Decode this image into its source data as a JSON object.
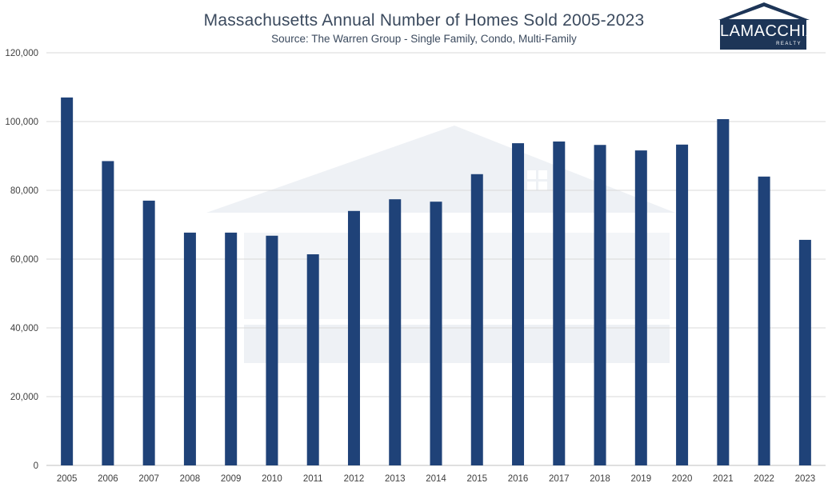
{
  "brand": {
    "logo_name": "LAMACCHIA",
    "logo_sub": "REALTY"
  },
  "colors": {
    "bar": "#1f4278",
    "grid": "#d9d9d9",
    "text": "#404040",
    "title": "#3b4a5e",
    "watermark": "#eef1f5"
  },
  "chart_data": {
    "type": "bar",
    "title": "Massachusetts Annual Number of Homes Sold 2005-2023",
    "subtitle": "Source: The Warren Group - Single Family, Condo, Multi-Family",
    "xlabel": "",
    "ylabel": "",
    "ylim": [
      0,
      120000
    ],
    "yticks": [
      0,
      20000,
      40000,
      60000,
      80000,
      100000,
      120000
    ],
    "ytick_labels": [
      "0",
      "20,000",
      "40,000",
      "60,000",
      "80,000",
      "100,000",
      "120,000"
    ],
    "grid": true,
    "legend": "none",
    "categories": [
      "2005",
      "2006",
      "2007",
      "2008",
      "2009",
      "2010",
      "2011",
      "2012",
      "2013",
      "2014",
      "2015",
      "2016",
      "2017",
      "2018",
      "2019",
      "2020",
      "2021",
      "2022",
      "2023"
    ],
    "values": [
      107000,
      88500,
      77000,
      67700,
      67700,
      66800,
      61400,
      74000,
      77400,
      76700,
      84700,
      93700,
      94200,
      93200,
      91600,
      93300,
      100700,
      84000,
      65600
    ]
  }
}
